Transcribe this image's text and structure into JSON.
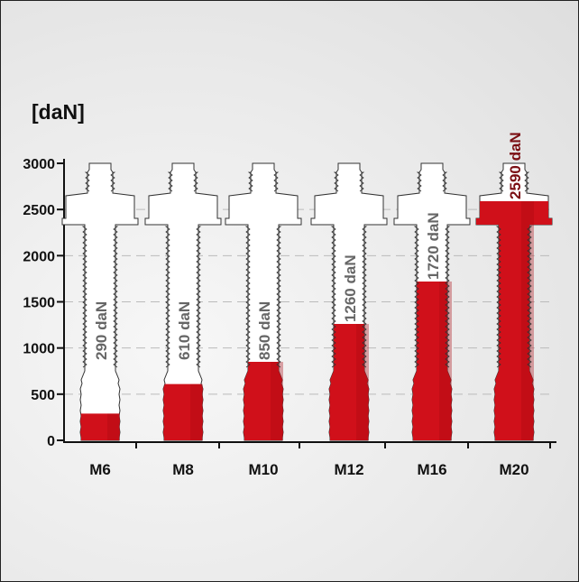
{
  "chart_data": {
    "type": "bar",
    "unit_label": "[daN]",
    "categories": [
      "M6",
      "M8",
      "M10",
      "M12",
      "M16",
      "M20"
    ],
    "values": [
      290,
      610,
      850,
      1260,
      1720,
      2590
    ],
    "value_labels": [
      "290 daN",
      "610 daN",
      "850 daN",
      "1260 daN",
      "1720 daN",
      "2590 daN"
    ],
    "y_ticks": [
      0,
      500,
      1000,
      1500,
      2000,
      2500,
      3000
    ],
    "y_tick_labels": [
      "0",
      "500",
      "1000",
      "1500",
      "2000",
      "2500",
      "3000"
    ],
    "ylim": [
      0,
      3000
    ],
    "grid": true,
    "colors": {
      "fill": "#d0101a",
      "fill_dark": "#a80a12",
      "outline": "#333333",
      "grid": "#bbbbbb",
      "label": "#666666",
      "label_on_fill": "#7a0d12"
    }
  }
}
